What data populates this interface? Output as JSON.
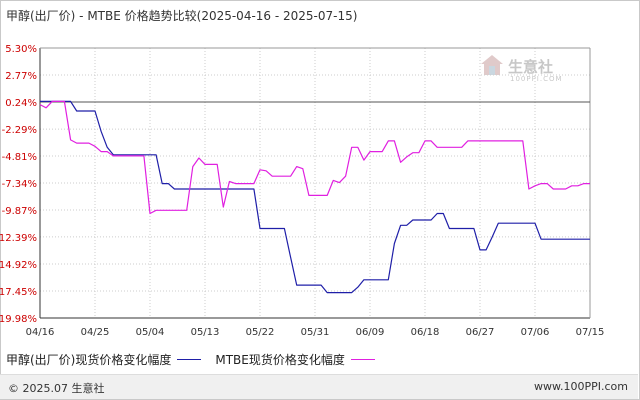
{
  "title": "甲醇(出厂价) - MTBE 价格趋势比较(2025-04-16 - 2025-07-15)",
  "watermark": {
    "text": "生意社",
    "sub": "100PPI.COM"
  },
  "footer": {
    "copyright": "© 2025.07 生意社",
    "url": "www.100PPI.com"
  },
  "chart_data": {
    "type": "line",
    "y_ticks": [
      "5.30%",
      "2.77%",
      "0.24%",
      "-2.29%",
      "-4.81%",
      "-7.34%",
      "-9.87%",
      "-12.39%",
      "-14.92%",
      "-17.45%",
      "-19.98%"
    ],
    "y_values": [
      5.3,
      2.77,
      0.24,
      -2.29,
      -4.81,
      -7.34,
      -9.87,
      -12.39,
      -14.92,
      -17.45,
      -19.98
    ],
    "ylim": [
      -19.98,
      5.3
    ],
    "zero_line": 0.24,
    "x_ticks": [
      "04/16",
      "04/25",
      "05/04",
      "05/13",
      "05/22",
      "05/31",
      "06/09",
      "06/18",
      "06/27",
      "07/06",
      "07/15"
    ],
    "x_range_days": [
      0,
      90
    ],
    "series": [
      {
        "name": "甲醇(出厂价)现货价格变化幅度",
        "color": "#1f1fa8",
        "x": [
          0,
          1,
          2,
          3,
          4,
          5,
          6,
          7,
          8,
          9,
          10,
          11,
          12,
          13,
          14,
          15,
          16,
          17,
          18,
          19,
          20,
          21,
          22,
          23,
          24,
          25,
          26,
          27,
          28,
          29,
          30,
          31,
          32,
          33,
          34,
          35,
          36,
          37,
          38,
          39,
          40,
          41,
          42,
          43,
          44,
          45,
          46,
          47,
          48,
          49,
          50,
          51,
          52,
          53,
          54,
          55,
          56,
          57,
          58,
          59,
          60,
          61,
          62,
          63,
          64,
          65,
          66,
          67,
          68,
          69,
          70,
          71,
          72,
          73,
          74,
          75,
          76,
          77,
          78,
          79,
          80,
          81,
          82,
          83,
          84,
          85,
          86,
          87,
          88,
          89,
          90
        ],
        "y": [
          0.3,
          0.3,
          0.3,
          0.3,
          0.3,
          0.3,
          -0.6,
          -0.6,
          -0.6,
          -0.6,
          -2.5,
          -4.0,
          -4.7,
          -4.7,
          -4.7,
          -4.7,
          -4.7,
          -4.7,
          -4.7,
          -4.7,
          -7.4,
          -7.4,
          -7.9,
          -7.9,
          -7.9,
          -7.9,
          -7.9,
          -7.9,
          -7.9,
          -7.9,
          -7.9,
          -7.9,
          -7.9,
          -7.9,
          -7.9,
          -7.9,
          -11.6,
          -11.6,
          -11.6,
          -11.6,
          -11.6,
          -14.3,
          -16.9,
          -16.9,
          -16.9,
          -16.9,
          -16.9,
          -17.6,
          -17.6,
          -17.6,
          -17.6,
          -17.6,
          -17.1,
          -16.4,
          -16.4,
          -16.4,
          -16.4,
          -16.4,
          -13.0,
          -11.3,
          -11.3,
          -10.8,
          -10.8,
          -10.8,
          -10.8,
          -10.2,
          -10.2,
          -11.6,
          -11.6,
          -11.6,
          -11.6,
          -11.6,
          -13.6,
          -13.6,
          -12.4,
          -11.1,
          -11.1,
          -11.1,
          -11.1,
          -11.1,
          -11.1,
          -11.1,
          -12.6,
          -12.6,
          -12.6,
          -12.6,
          -12.6,
          -12.6,
          -12.6,
          -12.6,
          -12.6
        ]
      },
      {
        "name": "MTBE现货价格变化幅度",
        "color": "#e020e0",
        "x": [
          0,
          1,
          2,
          3,
          4,
          5,
          6,
          7,
          8,
          9,
          10,
          11,
          12,
          13,
          14,
          15,
          16,
          17,
          18,
          19,
          20,
          21,
          22,
          23,
          24,
          25,
          26,
          27,
          28,
          29,
          30,
          31,
          32,
          33,
          34,
          35,
          36,
          37,
          38,
          39,
          40,
          41,
          42,
          43,
          44,
          45,
          46,
          47,
          48,
          49,
          50,
          51,
          52,
          53,
          54,
          55,
          56,
          57,
          58,
          59,
          60,
          61,
          62,
          63,
          64,
          65,
          66,
          67,
          68,
          69,
          70,
          71,
          72,
          73,
          74,
          75,
          76,
          77,
          78,
          79,
          80,
          81,
          82,
          83,
          84,
          85,
          86,
          87,
          88,
          89,
          90
        ],
        "y": [
          0,
          -0.3,
          0.3,
          0.3,
          0.3,
          -3.3,
          -3.6,
          -3.6,
          -3.6,
          -3.9,
          -4.4,
          -4.4,
          -4.8,
          -4.8,
          -4.8,
          -4.8,
          -4.8,
          -4.8,
          -10.2,
          -9.9,
          -9.9,
          -9.9,
          -9.9,
          -9.9,
          -9.9,
          -5.8,
          -5.0,
          -5.6,
          -5.6,
          -5.6,
          -9.6,
          -7.2,
          -7.4,
          -7.4,
          -7.4,
          -7.4,
          -6.1,
          -6.2,
          -6.7,
          -6.7,
          -6.7,
          -6.7,
          -5.8,
          -6.0,
          -8.5,
          -8.5,
          -8.5,
          -8.5,
          -7.1,
          -7.3,
          -6.7,
          -4.0,
          -4.0,
          -5.2,
          -4.4,
          -4.4,
          -4.4,
          -3.4,
          -3.4,
          -5.4,
          -4.9,
          -4.5,
          -4.5,
          -3.4,
          -3.4,
          -4.0,
          -4.0,
          -4.0,
          -4.0,
          -4.0,
          -3.4,
          -3.4,
          -3.4,
          -3.4,
          -3.4,
          -3.4,
          -3.4,
          -3.4,
          -3.4,
          -3.4,
          -7.9,
          -7.6,
          -7.4,
          -7.4,
          -7.9,
          -7.9,
          -7.9,
          -7.6,
          -7.6,
          -7.4,
          -7.4
        ]
      }
    ],
    "grid": true,
    "legend_position": "bottom-left"
  }
}
